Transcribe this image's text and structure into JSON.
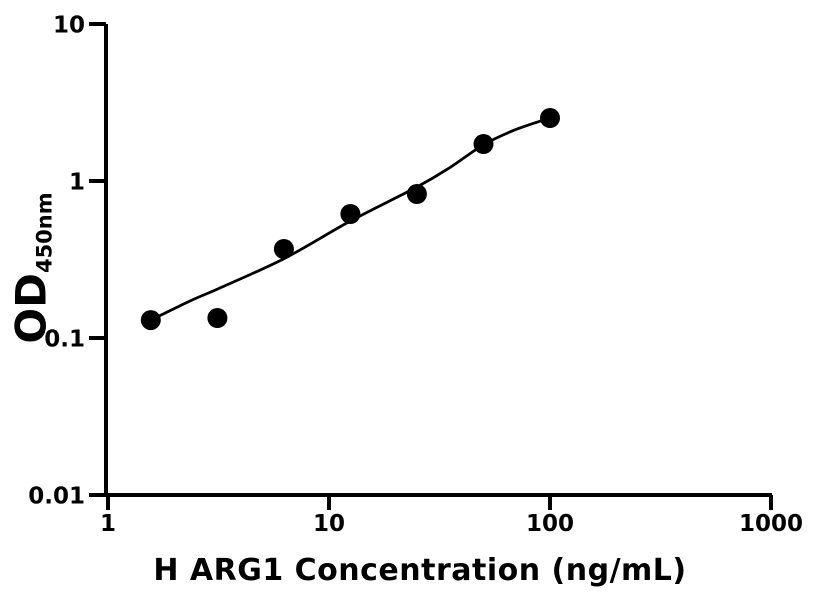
{
  "chart_data": {
    "type": "scatter",
    "title": "",
    "xlabel": "H ARG1 Concentration (ng/mL)",
    "ylabel_main": "OD",
    "ylabel_sub": "450nm",
    "x_scale": "log10",
    "y_scale": "log10",
    "xlim": [
      1,
      1000
    ],
    "ylim": [
      0.01,
      10
    ],
    "x_ticks": [
      1,
      10,
      100,
      1000
    ],
    "y_ticks": [
      10,
      1,
      0.1,
      0.01
    ],
    "grid": false,
    "legend": "none",
    "marker_size_px": 10,
    "colors": {
      "marker": "#000000",
      "line": "#000000",
      "axis": "#000000",
      "text": "#000000",
      "background": "#ffffff"
    },
    "series": [
      {
        "name": "standard-points",
        "type": "scatter",
        "x": [
          1.5625,
          3.125,
          6.25,
          12.5,
          25,
          50,
          100
        ],
        "y": [
          0.13,
          0.134,
          0.369,
          0.616,
          0.826,
          1.72,
          2.52
        ]
      },
      {
        "name": "fit-curve",
        "type": "line",
        "x": [
          1.5625,
          2.35,
          3.125,
          6.25,
          12.5,
          25,
          35,
          50,
          69,
          100
        ],
        "y": [
          0.13,
          0.172,
          0.205,
          0.32,
          0.556,
          0.916,
          1.21,
          1.7,
          2.11,
          2.52
        ]
      }
    ]
  }
}
